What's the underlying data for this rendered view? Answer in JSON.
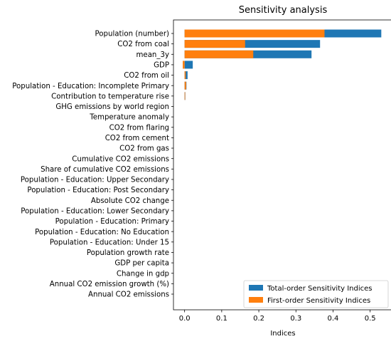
{
  "chart_data": {
    "type": "bar",
    "orientation": "horizontal",
    "title": "Sensitivity analysis",
    "xlabel": "Indices",
    "ylabel": "",
    "xlim": [
      -0.03,
      0.56
    ],
    "xticks": [
      "0.0",
      "0.1",
      "0.2",
      "0.3",
      "0.4",
      "0.5"
    ],
    "grid": false,
    "legend_position": "bottom-right",
    "categories": [
      "Population (number)",
      "CO2 from coal",
      "mean_3y",
      "GDP",
      "CO2 from oil",
      "Population - Education: Incomplete Primary",
      "Contribution to temperature rise",
      "GHG emissions by world region",
      "Temperature anomaly",
      "CO2 from flaring",
      "CO2 from cement",
      "CO2 from gas",
      "Cumulative CO2 emissions",
      "Share of cumulative CO2 emissions",
      "Population - Education: Upper Secondary",
      "Population - Education: Post Secondary",
      "Absolute CO2 change",
      "Population - Education: Lower Secondary",
      "Population - Education: Primary",
      "Population - Education: No Education",
      "Population - Education: Under 15",
      "Population growth rate",
      "GDP per capita",
      "Change in gdp",
      "Annual CO2 emission growth (%)",
      "Annual CO2 emissions"
    ],
    "series": [
      {
        "name": "Total-order Sensitivity Indices",
        "color": "#1f77b4",
        "values": [
          0.53,
          0.365,
          0.342,
          0.022,
          0.008,
          0.005,
          0.002,
          0,
          0,
          0,
          0,
          0,
          0,
          0,
          0,
          0,
          0,
          0,
          0,
          0,
          0,
          0,
          0,
          0,
          0,
          0
        ]
      },
      {
        "name": "First-order Sensitivity Indices",
        "color": "#ff7f0e",
        "values": [
          0.377,
          0.163,
          0.185,
          -0.005,
          0.003,
          0.004,
          0.001,
          0,
          0,
          0,
          0,
          0,
          0,
          0,
          0,
          0,
          0,
          0,
          0,
          0,
          0,
          0,
          0,
          0,
          0,
          0
        ]
      }
    ]
  }
}
